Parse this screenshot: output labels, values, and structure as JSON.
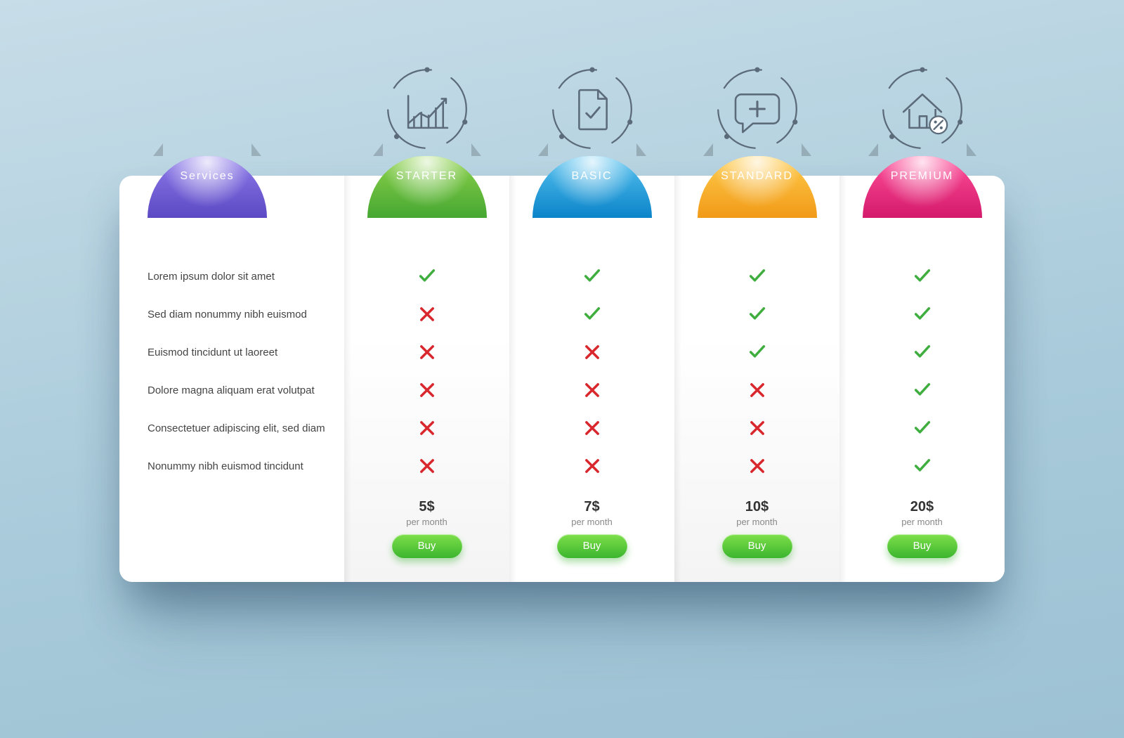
{
  "background_gradient": [
    "#c7dde8",
    "#9dc2d4"
  ],
  "services_label": "Services",
  "features": [
    "Lorem ipsum dolor sit amet",
    "Sed diam nonummy nibh euismod",
    "Euismod tincidunt ut laoreet",
    "Dolore magna aliquam erat volutpat",
    "Consectetuer adipiscing elit, sed diam",
    "Nonummy nibh euismod tincidunt"
  ],
  "buy_label": "Buy",
  "period_label": "per month",
  "check_color": "#3fae3f",
  "cross_color": "#d9272e",
  "icon_stroke": "#5c6b7a",
  "plans": [
    {
      "name": "STARTER",
      "tab_color_top": "#8fd24c",
      "tab_color_bottom": "#45a731",
      "price": "5$",
      "marks": [
        true,
        false,
        false,
        false,
        false,
        false
      ],
      "icon": "chart"
    },
    {
      "name": "BASIC",
      "tab_color_top": "#58c3f0",
      "tab_color_bottom": "#0b84c9",
      "price": "7$",
      "marks": [
        true,
        true,
        false,
        false,
        false,
        false
      ],
      "icon": "document"
    },
    {
      "name": "STANDARD",
      "tab_color_top": "#ffcc4d",
      "tab_color_bottom": "#f19a17",
      "price": "10$",
      "marks": [
        true,
        true,
        true,
        false,
        false,
        false
      ],
      "icon": "medical"
    },
    {
      "name": "PREMIUM",
      "tab_color_top": "#ff4f9a",
      "tab_color_bottom": "#d41a6b",
      "price": "20$",
      "marks": [
        true,
        true,
        true,
        true,
        true,
        true
      ],
      "icon": "house"
    }
  ],
  "services_tab": {
    "top": "#8f7bea",
    "bottom": "#5b49c4"
  }
}
